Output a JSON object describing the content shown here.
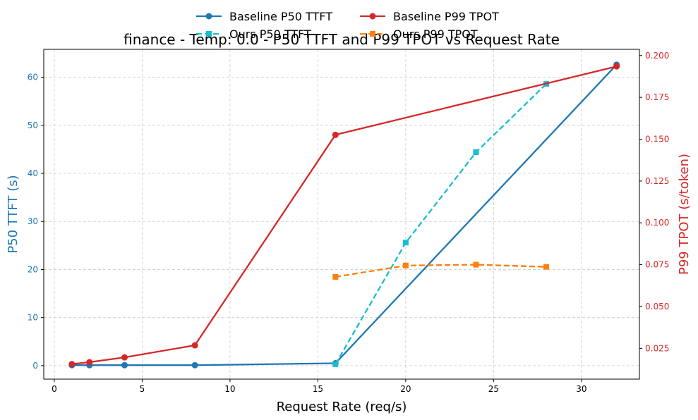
{
  "chart_data": {
    "type": "line",
    "title": "finance - Temp: 0.0 - P50 TTFT and P99 TPOT vs Request Rate",
    "xlabel": "Request Rate (req/s)",
    "ylabel_left": "P50 TTFT (s)",
    "ylabel_right": "P99 TPOT (s/token)",
    "xlim": [
      -0.6,
      33.3
    ],
    "ylim_left": [
      -2.8,
      65.8
    ],
    "ylim_right": [
      0.0066,
      0.2037
    ],
    "x_ticks": [
      0,
      5,
      10,
      15,
      20,
      25,
      30
    ],
    "y_left_ticks": [
      0,
      10,
      20,
      30,
      40,
      50,
      60
    ],
    "y_right_ticks": [
      0.025,
      0.05,
      0.075,
      0.1,
      0.125,
      0.15,
      0.175,
      0.2
    ],
    "y_right_tick_labels": [
      "0.025",
      "0.050",
      "0.075",
      "0.100",
      "0.125",
      "0.150",
      "0.175",
      "0.200"
    ],
    "grid": true,
    "legend_position": "top-center",
    "colors": {
      "left_axis": "#1f77b4",
      "right_axis": "#d62728"
    },
    "series": [
      {
        "name": "Baseline P50 TTFT",
        "axis": "left",
        "color": "#1f77b4",
        "dash": "solid",
        "marker": "circle",
        "x": [
          1,
          2,
          4,
          8,
          16,
          32
        ],
        "y": [
          0.1,
          0.1,
          0.1,
          0.1,
          0.5,
          62.6
        ]
      },
      {
        "name": "Ours P50 TTFT",
        "axis": "left",
        "color": "#17becf",
        "dash": "dashed",
        "marker": "square",
        "x": [
          16,
          20,
          24,
          28
        ],
        "y": [
          0.3,
          25.6,
          44.4,
          58.6
        ]
      },
      {
        "name": "Baseline P99 TPOT",
        "axis": "right",
        "color": "#d62728",
        "dash": "solid",
        "marker": "circle",
        "x": [
          1,
          2,
          4,
          8,
          16,
          32
        ],
        "y": [
          0.0156,
          0.0167,
          0.0196,
          0.0268,
          0.1526,
          0.1935
        ]
      },
      {
        "name": "Ours P99 TPOT",
        "axis": "right",
        "color": "#ff7f0e",
        "dash": "dashed",
        "marker": "square",
        "x": [
          16,
          20,
          24,
          28
        ],
        "y": [
          0.0677,
          0.0745,
          0.075,
          0.0737
        ]
      }
    ]
  }
}
